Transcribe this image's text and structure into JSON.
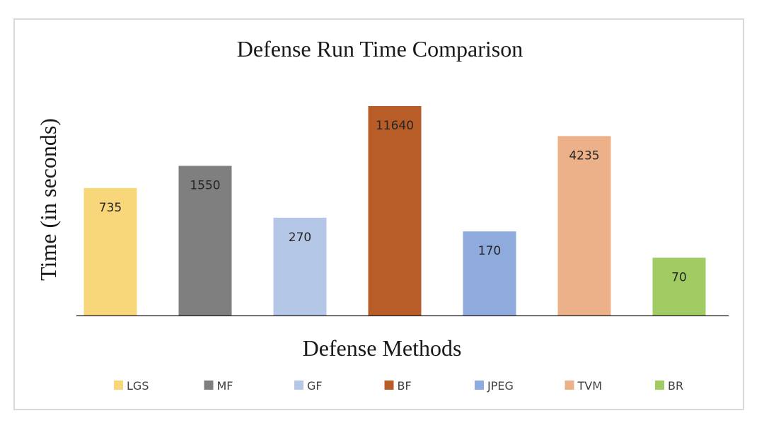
{
  "chart_data": {
    "type": "bar",
    "title": "Defense Run Time Comparison",
    "xlabel": "Defense Methods",
    "ylabel": "Time (in seconds)",
    "grid": false,
    "legend_position": "bottom",
    "categories": [
      "LGS",
      "MF",
      "GF",
      "BF",
      "JPEG",
      "TVM",
      "BR"
    ],
    "values": [
      735,
      1550,
      270,
      11640,
      170,
      4235,
      70
    ],
    "data_labels": [
      "735",
      "1550",
      "270",
      "11640",
      "170",
      "4235",
      "70"
    ],
    "scale": "log",
    "ylim": [
      10,
      20000
    ],
    "colors": [
      "#F8D77A",
      "#7F7F7F",
      "#B4C7E7",
      "#B85C28",
      "#8FAADC",
      "#EDB18A",
      "#A1CC63"
    ]
  }
}
